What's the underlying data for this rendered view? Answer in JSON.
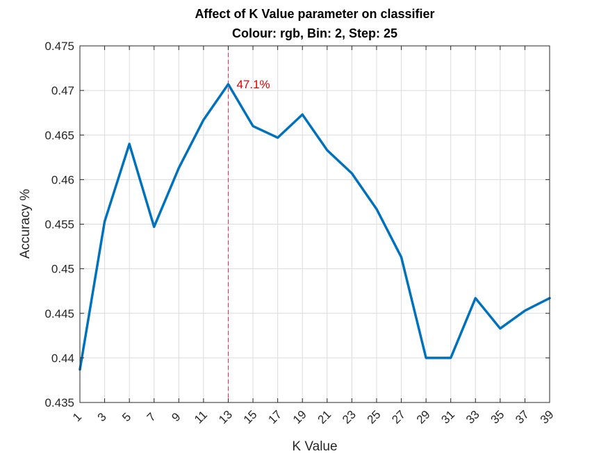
{
  "chart_data": {
    "type": "line",
    "title": "Affect of K Value parameter on classifier",
    "subtitle": "Colour: rgb, Bin: 2, Step: 25",
    "xlabel": "K Value",
    "ylabel": "Accuracy %",
    "xlim": [
      1,
      39
    ],
    "ylim": [
      0.435,
      0.475
    ],
    "xticks": [
      "1",
      "3",
      "5",
      "7",
      "9",
      "11",
      "13",
      "15",
      "17",
      "19",
      "21",
      "23",
      "25",
      "27",
      "29",
      "31",
      "33",
      "35",
      "37",
      "39"
    ],
    "yticks": [
      "0.435",
      "0.44",
      "0.445",
      "0.45",
      "0.455",
      "0.46",
      "0.465",
      "0.47",
      "0.475"
    ],
    "grid": true,
    "series": [
      {
        "color": "#0072BD",
        "x": [
          1,
          3,
          5,
          7,
          9,
          11,
          13,
          15,
          17,
          19,
          21,
          23,
          25,
          27,
          29,
          31,
          33,
          35,
          37,
          39
        ],
        "y": [
          0.4387,
          0.4553,
          0.464,
          0.4547,
          0.4613,
          0.4667,
          0.4707,
          0.466,
          0.4647,
          0.4673,
          0.4633,
          0.4607,
          0.4567,
          0.4513,
          0.44,
          0.44,
          0.4467,
          0.4433,
          0.4453,
          0.4467
        ]
      }
    ],
    "annotations": [
      {
        "type": "vline",
        "x": 13,
        "color": "#E0304A",
        "style": "dashed"
      },
      {
        "type": "text",
        "text": "47.1%",
        "x": 13,
        "y": 0.4707,
        "color": "#E00000"
      }
    ]
  }
}
